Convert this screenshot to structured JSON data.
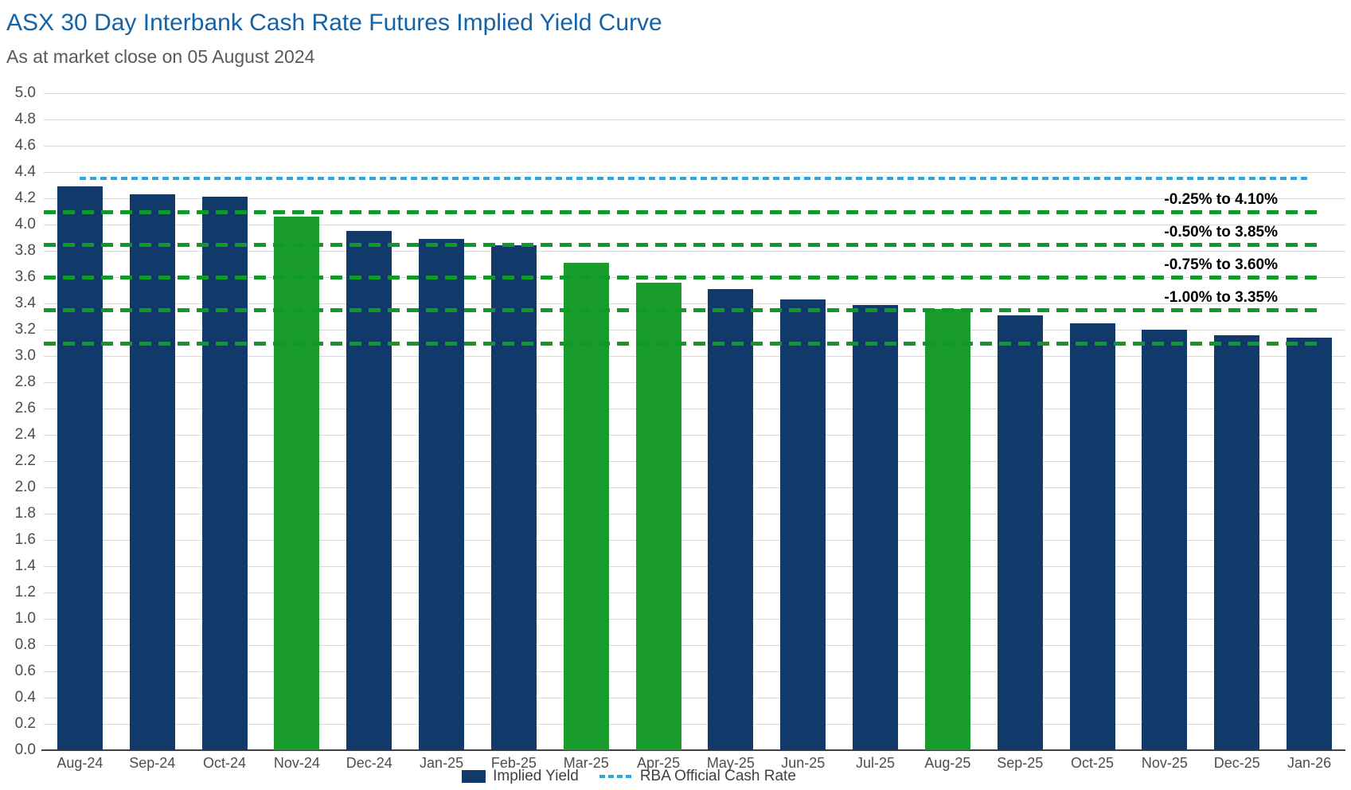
{
  "header": {
    "title": "ASX 30 Day Interbank Cash Rate Futures Implied Yield Curve",
    "subtitle": "As at market close on 05 August 2024"
  },
  "chart_data": {
    "type": "bar",
    "title": "ASX 30 Day Interbank Cash Rate Futures Implied Yield Curve",
    "subtitle": "As at market close on 05 August 2024",
    "categories": [
      "Aug-24",
      "Sep-24",
      "Oct-24",
      "Nov-24",
      "Dec-24",
      "Jan-25",
      "Feb-25",
      "Mar-25",
      "Apr-25",
      "May-25",
      "Jun-25",
      "Jul-25",
      "Aug-25",
      "Sep-25",
      "Oct-25",
      "Nov-25",
      "Dec-25",
      "Jan-26"
    ],
    "series": [
      {
        "name": "Implied Yield",
        "values": [
          4.29,
          4.23,
          4.21,
          4.06,
          3.95,
          3.89,
          3.84,
          3.71,
          3.56,
          3.51,
          3.43,
          3.39,
          3.36,
          3.31,
          3.25,
          3.2,
          3.16,
          3.14
        ]
      }
    ],
    "green_highlight_categories": [
      "Nov-24",
      "Mar-25",
      "Apr-25",
      "Aug-25"
    ],
    "rba_line": {
      "name": "RBA Official Cash Rate",
      "value": 4.35
    },
    "reference_lines": [
      {
        "value": 4.1,
        "label": "-0.25% to 4.10%"
      },
      {
        "value": 3.85,
        "label": "-0.50% to 3.85%"
      },
      {
        "value": 3.6,
        "label": "-0.75% to 3.60%"
      },
      {
        "value": 3.35,
        "label": "-1.00% to 3.35%"
      },
      {
        "value": 3.1,
        "label": ""
      }
    ],
    "xlabel": "",
    "ylabel": "",
    "y_axis": {
      "min": 0.0,
      "max": 5.0,
      "step": 0.2,
      "decimals": 1
    },
    "ylim": [
      0.0,
      5.0
    ],
    "grid": true,
    "legend_position": "bottom"
  },
  "colors": {
    "title": "#1563A7",
    "subtitle": "#595959",
    "bar_navy": "#113A6B",
    "bar_green": "#1A9C2C",
    "rba_line": "#29A9E1",
    "ref_line_green": "#0D9B27",
    "gridline": "#D9D9D9",
    "axis_text": "#4D4D4D",
    "axis_line": "#404040"
  }
}
